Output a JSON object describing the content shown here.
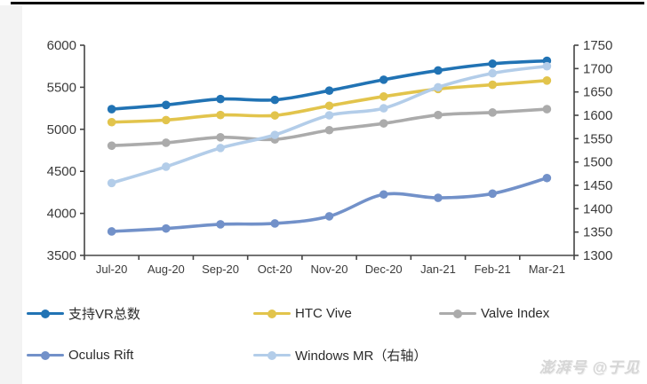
{
  "page": {
    "watermark": "澎湃号 @于见"
  },
  "chart_data": {
    "type": "line",
    "title": "",
    "xlabel": "",
    "ylabel": "",
    "grid": false,
    "legend_position": "bottom",
    "categories": [
      "Jul-20",
      "Aug-20",
      "Sep-20",
      "Oct-20",
      "Nov-20",
      "Dec-20",
      "Jan-21",
      "Feb-21",
      "Mar-21"
    ],
    "left_axis": {
      "min": 3500,
      "max": 6000,
      "step": 500,
      "ticks": [
        "6000",
        "5500",
        "5000",
        "4500",
        "4000",
        "3500"
      ]
    },
    "right_axis": {
      "min": 1300,
      "max": 1750,
      "step": 50,
      "ticks": [
        "1750",
        "1700",
        "1650",
        "1600",
        "1550",
        "1500",
        "1450",
        "1400",
        "1350",
        "1300"
      ]
    },
    "series": [
      {
        "name": "支持VR总数",
        "axis": "left",
        "color": "#2173B4",
        "values": [
          5240,
          5290,
          5360,
          5350,
          5460,
          5590,
          5700,
          5780,
          5815
        ]
      },
      {
        "name": "HTC Vive",
        "axis": "left",
        "color": "#E2C44C",
        "values": [
          5085,
          5110,
          5170,
          5165,
          5280,
          5390,
          5480,
          5530,
          5580
        ]
      },
      {
        "name": "Valve Index",
        "axis": "left",
        "color": "#ABABAB",
        "values": [
          4805,
          4840,
          4905,
          4880,
          4990,
          5070,
          5170,
          5200,
          5240
        ]
      },
      {
        "name": "Oculus Rift",
        "axis": "left",
        "color": "#7291C9",
        "values": [
          3785,
          3820,
          3870,
          3880,
          3965,
          4225,
          4185,
          4235,
          4420
        ]
      },
      {
        "name": "Windows MR（右轴）",
        "axis": "right",
        "color": "#B3CDE9",
        "values": [
          1455,
          1490,
          1530,
          1558,
          1600,
          1615,
          1660,
          1690,
          1705
        ]
      }
    ]
  }
}
